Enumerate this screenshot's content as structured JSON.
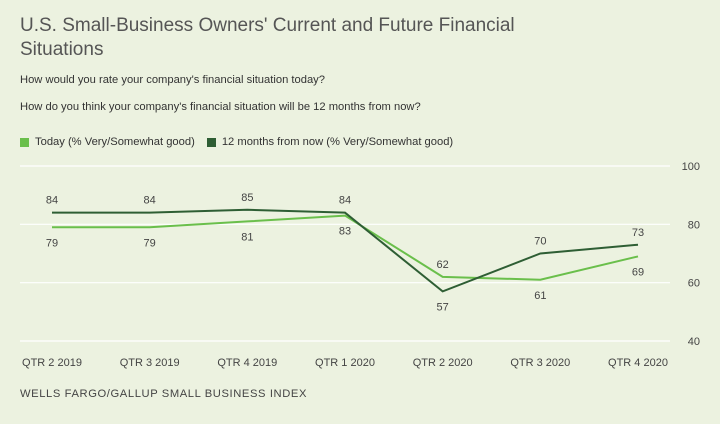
{
  "title": "U.S. Small-Business Owners' Current and Future Financial Situations",
  "questions": [
    "How would you rate your company's financial situation today?",
    "How do you think your company's financial situation will be 12 months from now?"
  ],
  "source": "WELLS FARGO/GALLUP SMALL BUSINESS INDEX",
  "chart_data": {
    "type": "line",
    "categories": [
      "QTR 2 2019",
      "QTR 3 2019",
      "QTR 4 2019",
      "QTR 1 2020",
      "QTR 2 2020",
      "QTR 3 2020",
      "QTR 4 2020"
    ],
    "series": [
      {
        "name": "Today (% Very/Somewhat good)",
        "values": [
          79,
          79,
          81,
          83,
          62,
          61,
          69
        ],
        "color": "#6abf4b"
      },
      {
        "name": "12 months from now (% Very/Somewhat good)",
        "values": [
          84,
          84,
          85,
          84,
          57,
          70,
          73
        ],
        "color": "#2e5e34"
      }
    ],
    "ylim": [
      40,
      100
    ],
    "yticks": [
      40,
      60,
      80,
      100
    ],
    "grid": true,
    "legend_position": "top-left"
  }
}
